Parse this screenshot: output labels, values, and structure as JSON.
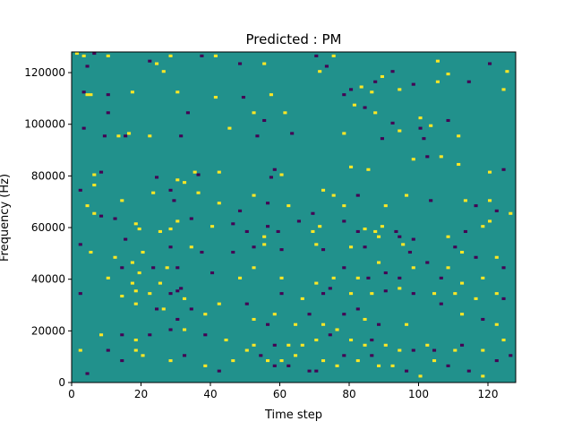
{
  "chart_data": {
    "type": "heatmap",
    "title": "Predicted : PM",
    "xlabel": "Time step",
    "ylabel": "Frequency (Hz)",
    "xlim": [
      0,
      128
    ],
    "ylim": [
      0,
      128000
    ],
    "x_ticks": [
      0,
      20,
      40,
      60,
      80,
      100,
      120
    ],
    "x_tick_labels": [
      "0",
      "20",
      "40",
      "60",
      "80",
      "100",
      "120"
    ],
    "y_ticks": [
      0,
      20000,
      40000,
      60000,
      80000,
      100000,
      120000
    ],
    "y_tick_labels": [
      "0",
      "20000",
      "40000",
      "60000",
      "80000",
      "100000",
      "120000"
    ],
    "value_levels": [
      -1,
      0,
      1
    ],
    "colors": {
      "background": "#21918c",
      "positive": "#fde725",
      "negative": "#440154"
    },
    "grid": false,
    "legend": "none",
    "cells": [
      [
        1,
        127000,
        1
      ],
      [
        3,
        126000,
        1
      ],
      [
        6,
        127000,
        -1
      ],
      [
        10,
        126000,
        1
      ],
      [
        22,
        124000,
        -1
      ],
      [
        24,
        123000,
        1
      ],
      [
        28,
        126000,
        1
      ],
      [
        37,
        126000,
        -1
      ],
      [
        41,
        126000,
        1
      ],
      [
        48,
        123000,
        -1
      ],
      [
        55,
        123000,
        1
      ],
      [
        70,
        126000,
        -1
      ],
      [
        75,
        126000,
        1
      ],
      [
        105,
        124000,
        1
      ],
      [
        120,
        123000,
        -1
      ],
      [
        4,
        122000,
        -1
      ],
      [
        26,
        120000,
        1
      ],
      [
        71,
        120000,
        1
      ],
      [
        73,
        122000,
        -1
      ],
      [
        87,
        116000,
        -1
      ],
      [
        89,
        118000,
        1
      ],
      [
        92,
        120000,
        -1
      ],
      [
        108,
        119000,
        1
      ],
      [
        114,
        116000,
        -1
      ],
      [
        125,
        120000,
        1
      ],
      [
        3,
        112000,
        -1
      ],
      [
        4,
        111000,
        1
      ],
      [
        5,
        111000,
        1
      ],
      [
        10,
        111000,
        -1
      ],
      [
        17,
        112000,
        1
      ],
      [
        30,
        112000,
        1
      ],
      [
        41,
        110000,
        1
      ],
      [
        49,
        110000,
        -1
      ],
      [
        57,
        111000,
        1
      ],
      [
        78,
        111000,
        -1
      ],
      [
        80,
        113000,
        -1
      ],
      [
        83,
        114000,
        1
      ],
      [
        86,
        112000,
        1
      ],
      [
        94,
        113000,
        1
      ],
      [
        98,
        115000,
        -1
      ],
      [
        105,
        116000,
        1
      ],
      [
        124,
        113000,
        1
      ],
      [
        10,
        104000,
        -1
      ],
      [
        33,
        104000,
        -1
      ],
      [
        52,
        104000,
        1
      ],
      [
        55,
        101000,
        -1
      ],
      [
        61,
        104000,
        1
      ],
      [
        81,
        107000,
        1
      ],
      [
        84,
        106000,
        -1
      ],
      [
        87,
        104000,
        1
      ],
      [
        92,
        100000,
        -1
      ],
      [
        100,
        102000,
        1
      ],
      [
        103,
        99000,
        1
      ],
      [
        108,
        101000,
        -1
      ],
      [
        3,
        98000,
        -1
      ],
      [
        9,
        95000,
        -1
      ],
      [
        13,
        95000,
        1
      ],
      [
        15,
        95000,
        -1
      ],
      [
        16,
        96000,
        1
      ],
      [
        22,
        95000,
        1
      ],
      [
        31,
        95000,
        -1
      ],
      [
        45,
        98000,
        1
      ],
      [
        53,
        95000,
        -1
      ],
      [
        63,
        96000,
        -1
      ],
      [
        78,
        96000,
        1
      ],
      [
        89,
        94000,
        -1
      ],
      [
        94,
        97000,
        1
      ],
      [
        100,
        98000,
        -1
      ],
      [
        101,
        94000,
        -1
      ],
      [
        111,
        95000,
        1
      ],
      [
        6,
        80000,
        1
      ],
      [
        8,
        81000,
        -1
      ],
      [
        24,
        79000,
        -1
      ],
      [
        30,
        78000,
        1
      ],
      [
        35,
        81000,
        1
      ],
      [
        36,
        80000,
        -1
      ],
      [
        42,
        81000,
        1
      ],
      [
        57,
        79000,
        -1
      ],
      [
        58,
        82000,
        -1
      ],
      [
        60,
        80000,
        1
      ],
      [
        80,
        83000,
        1
      ],
      [
        85,
        82000,
        1
      ],
      [
        98,
        86000,
        1
      ],
      [
        102,
        87000,
        -1
      ],
      [
        106,
        87000,
        1
      ],
      [
        111,
        84000,
        1
      ],
      [
        120,
        81000,
        1
      ],
      [
        124,
        82000,
        -1
      ],
      [
        2,
        74000,
        -1
      ],
      [
        4,
        68000,
        1
      ],
      [
        6,
        76000,
        1
      ],
      [
        8,
        64000,
        -1
      ],
      [
        14,
        70000,
        1
      ],
      [
        23,
        73000,
        1
      ],
      [
        28,
        74000,
        -1
      ],
      [
        29,
        70000,
        -1
      ],
      [
        32,
        77000,
        1
      ],
      [
        36,
        73000,
        1
      ],
      [
        42,
        69000,
        1
      ],
      [
        48,
        66000,
        -1
      ],
      [
        52,
        72000,
        1
      ],
      [
        56,
        69000,
        -1
      ],
      [
        62,
        68000,
        1
      ],
      [
        69,
        65000,
        -1
      ],
      [
        72,
        74000,
        1
      ],
      [
        75,
        72000,
        1
      ],
      [
        78,
        68000,
        1
      ],
      [
        82,
        72000,
        -1
      ],
      [
        90,
        68000,
        1
      ],
      [
        96,
        72000,
        1
      ],
      [
        103,
        70000,
        -1
      ],
      [
        113,
        70000,
        1
      ],
      [
        116,
        68000,
        -1
      ],
      [
        120,
        70000,
        1
      ],
      [
        122,
        66000,
        -1
      ],
      [
        126,
        65000,
        1
      ],
      [
        6,
        65000,
        1
      ],
      [
        12,
        63000,
        -1
      ],
      [
        18,
        61000,
        1
      ],
      [
        19,
        59000,
        1
      ],
      [
        25,
        58000,
        1
      ],
      [
        28,
        59000,
        1
      ],
      [
        30,
        62000,
        1
      ],
      [
        34,
        63000,
        -1
      ],
      [
        40,
        60000,
        1
      ],
      [
        46,
        61000,
        -1
      ],
      [
        50,
        58000,
        -1
      ],
      [
        55,
        56000,
        1
      ],
      [
        56,
        60000,
        -1
      ],
      [
        59,
        58000,
        -1
      ],
      [
        65,
        62000,
        -1
      ],
      [
        69,
        58000,
        1
      ],
      [
        71,
        60000,
        1
      ],
      [
        78,
        62000,
        -1
      ],
      [
        82,
        58000,
        -1
      ],
      [
        84,
        59000,
        1
      ],
      [
        87,
        58000,
        1
      ],
      [
        89,
        60000,
        1
      ],
      [
        93,
        58000,
        -1
      ],
      [
        94,
        56000,
        -1
      ],
      [
        98,
        55000,
        -1
      ],
      [
        108,
        56000,
        1
      ],
      [
        113,
        58000,
        -1
      ],
      [
        118,
        60000,
        1
      ],
      [
        120,
        62000,
        1
      ],
      [
        2,
        53000,
        -1
      ],
      [
        5,
        50000,
        1
      ],
      [
        12,
        48000,
        1
      ],
      [
        15,
        55000,
        -1
      ],
      [
        20,
        50000,
        1
      ],
      [
        28,
        52000,
        -1
      ],
      [
        34,
        52000,
        1
      ],
      [
        37,
        50000,
        -1
      ],
      [
        46,
        50000,
        -1
      ],
      [
        52,
        52000,
        -1
      ],
      [
        55,
        53000,
        1
      ],
      [
        60,
        51000,
        -1
      ],
      [
        70,
        53000,
        1
      ],
      [
        72,
        51000,
        -1
      ],
      [
        80,
        52000,
        1
      ],
      [
        84,
        52000,
        -1
      ],
      [
        88,
        56000,
        1
      ],
      [
        95,
        53000,
        1
      ],
      [
        97,
        50000,
        -1
      ],
      [
        110,
        52000,
        -1
      ],
      [
        112,
        50000,
        1
      ],
      [
        116,
        48000,
        -1
      ],
      [
        122,
        48000,
        1
      ],
      [
        10,
        40000,
        1
      ],
      [
        14,
        44000,
        -1
      ],
      [
        17,
        38000,
        1
      ],
      [
        17,
        46000,
        1
      ],
      [
        19,
        42000,
        1
      ],
      [
        23,
        44000,
        -1
      ],
      [
        25,
        38000,
        1
      ],
      [
        27,
        44000,
        1
      ],
      [
        30,
        44000,
        -1
      ],
      [
        31,
        36000,
        -1
      ],
      [
        40,
        42000,
        -1
      ],
      [
        48,
        40000,
        1
      ],
      [
        52,
        44000,
        1
      ],
      [
        60,
        40000,
        1
      ],
      [
        70,
        38000,
        1
      ],
      [
        75,
        40000,
        1
      ],
      [
        78,
        44000,
        -1
      ],
      [
        82,
        40000,
        1
      ],
      [
        85,
        40000,
        -1
      ],
      [
        88,
        46000,
        1
      ],
      [
        90,
        42000,
        -1
      ],
      [
        94,
        40000,
        -1
      ],
      [
        98,
        44000,
        1
      ],
      [
        102,
        46000,
        -1
      ],
      [
        106,
        40000,
        -1
      ],
      [
        108,
        44000,
        1
      ],
      [
        112,
        38000,
        1
      ],
      [
        118,
        40000,
        1
      ],
      [
        124,
        44000,
        -1
      ],
      [
        2,
        34000,
        -1
      ],
      [
        14,
        33000,
        1
      ],
      [
        18,
        35000,
        1
      ],
      [
        22,
        34000,
        1
      ],
      [
        28,
        34000,
        -1
      ],
      [
        30,
        35000,
        -1
      ],
      [
        32,
        32000,
        1
      ],
      [
        42,
        30000,
        1
      ],
      [
        50,
        30000,
        -1
      ],
      [
        60,
        34000,
        -1
      ],
      [
        66,
        32000,
        1
      ],
      [
        72,
        34000,
        -1
      ],
      [
        74,
        36000,
        -1
      ],
      [
        80,
        34000,
        1
      ],
      [
        86,
        34000,
        1
      ],
      [
        90,
        35000,
        -1
      ],
      [
        94,
        36000,
        1
      ],
      [
        98,
        34000,
        -1
      ],
      [
        104,
        34000,
        1
      ],
      [
        110,
        34000,
        1
      ],
      [
        116,
        32000,
        1
      ],
      [
        122,
        34000,
        1
      ],
      [
        124,
        32000,
        -1
      ],
      [
        18,
        30000,
        1
      ],
      [
        24,
        28000,
        -1
      ],
      [
        26,
        28000,
        1
      ],
      [
        30,
        24000,
        -1
      ],
      [
        34,
        28000,
        -1
      ],
      [
        38,
        26000,
        1
      ],
      [
        52,
        24000,
        1
      ],
      [
        56,
        22000,
        -1
      ],
      [
        58,
        26000,
        1
      ],
      [
        64,
        22000,
        1
      ],
      [
        68,
        26000,
        -1
      ],
      [
        72,
        22000,
        1
      ],
      [
        78,
        26000,
        -1
      ],
      [
        82,
        28000,
        -1
      ],
      [
        84,
        24000,
        1
      ],
      [
        88,
        22000,
        -1
      ],
      [
        96,
        22000,
        1
      ],
      [
        106,
        30000,
        -1
      ],
      [
        112,
        26000,
        1
      ],
      [
        118,
        24000,
        -1
      ],
      [
        122,
        22000,
        1
      ],
      [
        8,
        18000,
        1
      ],
      [
        14,
        18000,
        -1
      ],
      [
        18,
        16000,
        1
      ],
      [
        22,
        18000,
        -1
      ],
      [
        28,
        20000,
        -1
      ],
      [
        32,
        20000,
        1
      ],
      [
        38,
        18000,
        -1
      ],
      [
        44,
        16000,
        1
      ],
      [
        52,
        14000,
        1
      ],
      [
        58,
        14000,
        -1
      ],
      [
        62,
        14000,
        1
      ],
      [
        66,
        14000,
        1
      ],
      [
        70,
        16000,
        1
      ],
      [
        74,
        18000,
        -1
      ],
      [
        76,
        20000,
        1
      ],
      [
        80,
        16000,
        1
      ],
      [
        84,
        14000,
        1
      ],
      [
        86,
        16000,
        -1
      ],
      [
        90,
        14000,
        1
      ],
      [
        94,
        12000,
        1
      ],
      [
        98,
        12000,
        -1
      ],
      [
        102,
        14000,
        1
      ],
      [
        104,
        12000,
        -1
      ],
      [
        110,
        12000,
        1
      ],
      [
        112,
        14000,
        -1
      ],
      [
        118,
        12000,
        1
      ],
      [
        124,
        16000,
        1
      ],
      [
        2,
        12000,
        1
      ],
      [
        4,
        3000,
        -1
      ],
      [
        10,
        12000,
        -1
      ],
      [
        14,
        8000,
        -1
      ],
      [
        18,
        12000,
        1
      ],
      [
        20,
        10000,
        1
      ],
      [
        28,
        8000,
        1
      ],
      [
        32,
        10000,
        -1
      ],
      [
        38,
        6000,
        1
      ],
      [
        42,
        4000,
        -1
      ],
      [
        46,
        8000,
        1
      ],
      [
        50,
        12000,
        1
      ],
      [
        54,
        10000,
        -1
      ],
      [
        56,
        8000,
        1
      ],
      [
        58,
        6000,
        -1
      ],
      [
        60,
        8000,
        1
      ],
      [
        62,
        6000,
        -1
      ],
      [
        64,
        10000,
        1
      ],
      [
        68,
        4000,
        -1
      ],
      [
        70,
        4000,
        -1
      ],
      [
        72,
        8000,
        1
      ],
      [
        76,
        6000,
        1
      ],
      [
        78,
        10000,
        -1
      ],
      [
        82,
        8000,
        1
      ],
      [
        86,
        10000,
        -1
      ],
      [
        88,
        6000,
        1
      ],
      [
        92,
        6000,
        1
      ],
      [
        96,
        4000,
        -1
      ],
      [
        100,
        2000,
        1
      ],
      [
        104,
        8000,
        1
      ],
      [
        108,
        6000,
        -1
      ],
      [
        114,
        4000,
        -1
      ],
      [
        118,
        2000,
        1
      ],
      [
        122,
        8000,
        -1
      ],
      [
        126,
        10000,
        -1
      ]
    ]
  }
}
